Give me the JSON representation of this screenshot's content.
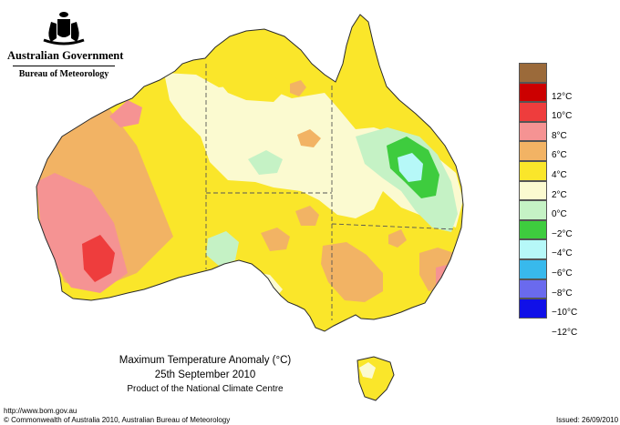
{
  "header": {
    "org": "Australian Government",
    "bureau": "Bureau of Meteorology"
  },
  "map": {
    "title": "Maximum Temperature Anomaly (°C)",
    "date": "25th September 2010",
    "product": "Product of the National Climate Centre",
    "colors": {
      "c12": "#8b5a2b",
      "c10": "#cc0000",
      "c8": "#ee4444",
      "c6": "#f59393",
      "c4": "#f2b364",
      "c2": "#fae62a",
      "c0": "#fbfad0",
      "m2": "#c5f2c5",
      "m4": "#3ecc3e",
      "m6": "#b6f8f8",
      "m8": "#38b9ec",
      "m10": "#6a6aee",
      "m12": "#1010e8"
    }
  },
  "legend": {
    "items": [
      {
        "label": "",
        "color": "#9b6a3a"
      },
      {
        "label": "12°C",
        "color": "#cc0000"
      },
      {
        "label": "10°C",
        "color": "#ee3d3d"
      },
      {
        "label": "8°C",
        "color": "#f59393"
      },
      {
        "label": "6°C",
        "color": "#f2b364"
      },
      {
        "label": "4°C",
        "color": "#fae62a"
      },
      {
        "label": "2°C",
        "color": "#fbfad0"
      },
      {
        "label": "0°C",
        "color": "#c5f2c5"
      },
      {
        "label": "−2°C",
        "color": "#3ecc3e"
      },
      {
        "label": "−4°C",
        "color": "#b6f8f8"
      },
      {
        "label": "−6°C",
        "color": "#38b9ec"
      },
      {
        "label": "−8°C",
        "color": "#6a6aee"
      },
      {
        "label": "−10°C",
        "color": "#1010e8"
      },
      {
        "label": "−12°C",
        "color": ""
      }
    ]
  },
  "footer": {
    "url": "http://www.bom.gov.au",
    "copyright": "© Commonwealth of Australia 2010, Australian Bureau of Meteorology",
    "issued": "Issued: 26/09/2010"
  }
}
